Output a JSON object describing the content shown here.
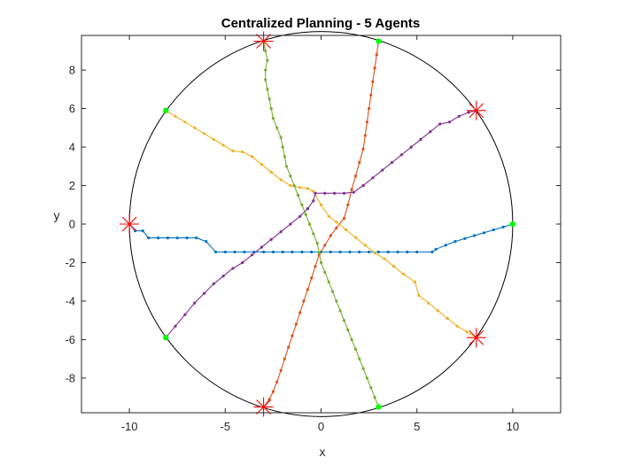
{
  "chart_data": {
    "type": "line",
    "title": "Centralized Planning - 5 Agents",
    "xlabel": "x",
    "ylabel": "y",
    "xlim": [
      -12.5,
      12.5
    ],
    "ylim": [
      -9.8,
      9.8
    ],
    "xticks": [
      -10,
      -5,
      0,
      5,
      10
    ],
    "yticks": [
      -8,
      -6,
      -4,
      -2,
      0,
      2,
      4,
      6,
      8
    ],
    "xtick_labels": [
      "-10",
      "-5",
      "0",
      "5",
      "10"
    ],
    "ytick_labels": [
      "-8",
      "-6",
      "-4",
      "-2",
      "0",
      "2",
      "4",
      "6",
      "8"
    ],
    "grid": false,
    "boundary_circle": {
      "center": [
        0,
        0
      ],
      "radius": 10,
      "color": "#000000"
    },
    "start_marker_color": "#00ff00",
    "goal_marker_color": "#ff0000",
    "series": [
      {
        "color": "#0072BD",
        "start": [
          10,
          0
        ],
        "goal": [
          -10,
          0
        ],
        "points": [
          [
            10,
            0
          ],
          [
            9.5,
            -0.15
          ],
          [
            9,
            -0.3
          ],
          [
            8.5,
            -0.45
          ],
          [
            8,
            -0.6
          ],
          [
            7.5,
            -0.75
          ],
          [
            7,
            -0.9
          ],
          [
            6.5,
            -1.1
          ],
          [
            6,
            -1.3
          ],
          [
            5.8,
            -1.45
          ],
          [
            5,
            -1.45
          ],
          [
            4.5,
            -1.45
          ],
          [
            4,
            -1.45
          ],
          [
            3.5,
            -1.45
          ],
          [
            3,
            -1.45
          ],
          [
            2.5,
            -1.45
          ],
          [
            2,
            -1.45
          ],
          [
            1.5,
            -1.45
          ],
          [
            1,
            -1.45
          ],
          [
            0.5,
            -1.45
          ],
          [
            0,
            -1.45
          ],
          [
            -0.5,
            -1.45
          ],
          [
            -1,
            -1.45
          ],
          [
            -1.5,
            -1.45
          ],
          [
            -2,
            -1.45
          ],
          [
            -2.5,
            -1.45
          ],
          [
            -3,
            -1.45
          ],
          [
            -3.5,
            -1.45
          ],
          [
            -4,
            -1.45
          ],
          [
            -4.5,
            -1.45
          ],
          [
            -5,
            -1.45
          ],
          [
            -5.5,
            -1.45
          ],
          [
            -6,
            -0.9
          ],
          [
            -6.5,
            -0.72
          ],
          [
            -7,
            -0.72
          ],
          [
            -7.5,
            -0.72
          ],
          [
            -8,
            -0.72
          ],
          [
            -8.5,
            -0.72
          ],
          [
            -9,
            -0.72
          ],
          [
            -9.3,
            -0.35
          ],
          [
            -9.7,
            -0.35
          ],
          [
            -10,
            0
          ]
        ]
      },
      {
        "color": "#D95319",
        "start": [
          3,
          9.5
        ],
        "goal": [
          -3,
          -9.5
        ],
        "points": [
          [
            3,
            9.5
          ],
          [
            2.9,
            8.8
          ],
          [
            2.8,
            8.1
          ],
          [
            2.7,
            7.4
          ],
          [
            2.6,
            6.7
          ],
          [
            2.5,
            6.0
          ],
          [
            2.4,
            5.3
          ],
          [
            2.3,
            4.6
          ],
          [
            2.2,
            3.9
          ],
          [
            2.0,
            3.2
          ],
          [
            1.8,
            2.5
          ],
          [
            1.6,
            1.8
          ],
          [
            1.4,
            1.0
          ],
          [
            1.2,
            0.3
          ],
          [
            0.8,
            -0.2
          ],
          [
            0.5,
            -0.6
          ],
          [
            0.2,
            -1.1
          ],
          [
            -0.1,
            -1.6
          ],
          [
            -0.3,
            -2.2
          ],
          [
            -0.5,
            -2.8
          ],
          [
            -0.7,
            -3.4
          ],
          [
            -0.9,
            -4.0
          ],
          [
            -1.1,
            -4.6
          ],
          [
            -1.3,
            -5.2
          ],
          [
            -1.5,
            -5.8
          ],
          [
            -1.7,
            -6.4
          ],
          [
            -1.9,
            -7.0
          ],
          [
            -2.1,
            -7.6
          ],
          [
            -2.3,
            -8.2
          ],
          [
            -2.5,
            -8.7
          ],
          [
            -2.7,
            -9.1
          ],
          [
            -3,
            -9.5
          ]
        ]
      },
      {
        "color": "#EDB120",
        "start": [
          -8.1,
          5.9
        ],
        "goal": [
          8.1,
          -5.9
        ],
        "points": [
          [
            -8.1,
            5.9
          ],
          [
            -7.6,
            5.6
          ],
          [
            -7.1,
            5.3
          ],
          [
            -6.6,
            5.0
          ],
          [
            -6.1,
            4.7
          ],
          [
            -5.6,
            4.4
          ],
          [
            -5.1,
            4.1
          ],
          [
            -4.6,
            3.8
          ],
          [
            -4.1,
            3.75
          ],
          [
            -3.6,
            3.5
          ],
          [
            -3.1,
            3.1
          ],
          [
            -2.6,
            2.7
          ],
          [
            -2.1,
            2.3
          ],
          [
            -1.6,
            2.0
          ],
          [
            -1.1,
            1.9
          ],
          [
            -0.7,
            1.85
          ],
          [
            -0.4,
            1.7
          ],
          [
            0,
            1.0
          ],
          [
            0.4,
            0.4
          ],
          [
            0.8,
            0.1
          ],
          [
            1.3,
            -0.3
          ],
          [
            1.8,
            -0.7
          ],
          [
            2.3,
            -1.1
          ],
          [
            2.8,
            -1.5
          ],
          [
            3.3,
            -1.8
          ],
          [
            3.8,
            -2.2
          ],
          [
            4.3,
            -2.6
          ],
          [
            4.9,
            -3.0
          ],
          [
            5.1,
            -3.7
          ],
          [
            5.6,
            -4.1
          ],
          [
            6.1,
            -4.5
          ],
          [
            6.6,
            -4.9
          ],
          [
            7.1,
            -5.3
          ],
          [
            7.6,
            -5.6
          ],
          [
            8.1,
            -5.9
          ]
        ]
      },
      {
        "color": "#7E2F8E",
        "start": [
          -8.1,
          -5.9
        ],
        "goal": [
          8.1,
          5.9
        ],
        "points": [
          [
            -8.1,
            -5.9
          ],
          [
            -7.6,
            -5.3
          ],
          [
            -7.1,
            -4.7
          ],
          [
            -6.6,
            -4.1
          ],
          [
            -6.1,
            -3.6
          ],
          [
            -5.6,
            -3.1
          ],
          [
            -5.1,
            -2.7
          ],
          [
            -4.6,
            -2.3
          ],
          [
            -4.1,
            -2.0
          ],
          [
            -3.6,
            -1.6
          ],
          [
            -3.1,
            -1.2
          ],
          [
            -2.6,
            -0.8
          ],
          [
            -2.1,
            -0.4
          ],
          [
            -1.6,
            0.0
          ],
          [
            -1.1,
            0.4
          ],
          [
            -0.7,
            0.8
          ],
          [
            -0.4,
            1.2
          ],
          [
            -0.3,
            1.6
          ],
          [
            0.2,
            1.6
          ],
          [
            0.7,
            1.6
          ],
          [
            1.2,
            1.6
          ],
          [
            1.7,
            1.65
          ],
          [
            2.2,
            2.0
          ],
          [
            2.7,
            2.4
          ],
          [
            3.2,
            2.8
          ],
          [
            3.7,
            3.2
          ],
          [
            4.2,
            3.6
          ],
          [
            4.7,
            4.0
          ],
          [
            5.2,
            4.4
          ],
          [
            5.7,
            4.8
          ],
          [
            6.2,
            5.2
          ],
          [
            6.7,
            5.3
          ],
          [
            7.2,
            5.6
          ],
          [
            7.7,
            5.8
          ],
          [
            8.1,
            5.9
          ]
        ]
      },
      {
        "color": "#77AC30",
        "start": [
          3,
          -9.5
        ],
        "goal": [
          -3,
          9.5
        ],
        "points": [
          [
            3,
            -9.5
          ],
          [
            2.8,
            -9.0
          ],
          [
            2.6,
            -8.5
          ],
          [
            2.4,
            -8.0
          ],
          [
            2.2,
            -7.5
          ],
          [
            2.0,
            -7.0
          ],
          [
            1.8,
            -6.5
          ],
          [
            1.6,
            -6.0
          ],
          [
            1.4,
            -5.5
          ],
          [
            1.2,
            -5.0
          ],
          [
            1.0,
            -4.5
          ],
          [
            0.8,
            -4.0
          ],
          [
            0.6,
            -3.5
          ],
          [
            0.4,
            -3.0
          ],
          [
            0.2,
            -2.5
          ],
          [
            0.0,
            -2.0
          ],
          [
            -0.1,
            -1.5
          ],
          [
            -0.2,
            -1.0
          ],
          [
            -0.4,
            -0.5
          ],
          [
            -0.6,
            0.0
          ],
          [
            -0.8,
            0.5
          ],
          [
            -1.0,
            1.0
          ],
          [
            -1.2,
            1.5
          ],
          [
            -1.4,
            2.0
          ],
          [
            -1.6,
            2.5
          ],
          [
            -1.8,
            3.0
          ],
          [
            -1.9,
            3.5
          ],
          [
            -2.0,
            4.0
          ],
          [
            -2.1,
            4.5
          ],
          [
            -2.3,
            5.0
          ],
          [
            -2.5,
            5.5
          ],
          [
            -2.6,
            6.0
          ],
          [
            -2.7,
            6.5
          ],
          [
            -2.8,
            7.0
          ],
          [
            -2.9,
            7.5
          ],
          [
            -2.9,
            8.0
          ],
          [
            -2.8,
            8.5
          ],
          [
            -2.9,
            9.0
          ],
          [
            -3,
            9.5
          ]
        ]
      }
    ]
  }
}
